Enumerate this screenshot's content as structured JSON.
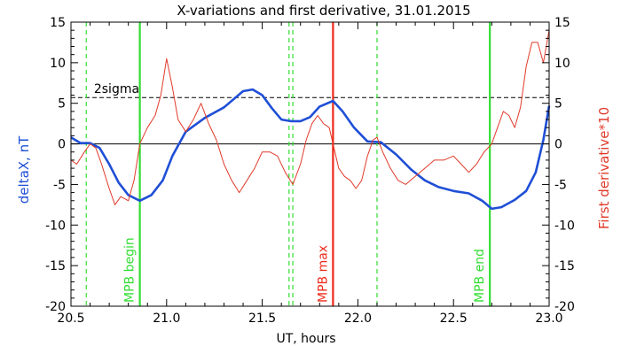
{
  "chart_data": {
    "type": "line",
    "title": "X-variations and first derivative, 31.01.2015",
    "xlabel": "UT, hours",
    "ylabel_left": "deltaX, nT",
    "ylabel_right": "First derivative*10",
    "xlim": [
      20.5,
      23.0
    ],
    "ylim": [
      -20,
      15
    ],
    "xticks": [
      "20.5",
      "21.0",
      "21.5",
      "22.0",
      "22.5",
      "23.0"
    ],
    "yticks": [
      "-20",
      "-15",
      "-10",
      "-5",
      "0",
      "5",
      "10",
      "15"
    ],
    "colors": {
      "deltaX": "#1f4fd6",
      "derivative": "#e03a2a",
      "mpb_edge": "#33dd33",
      "mpb_max": "#ee2a1a",
      "sigma": "#000000",
      "zero": "#000000"
    },
    "series": [
      {
        "name": "deltaX, nT",
        "axis": "left",
        "x": [
          20.5,
          20.55,
          20.6,
          20.65,
          20.7,
          20.75,
          20.8,
          20.86,
          20.92,
          20.98,
          21.03,
          21.1,
          21.2,
          21.3,
          21.4,
          21.45,
          21.5,
          21.55,
          21.6,
          21.65,
          21.7,
          21.75,
          21.8,
          21.87,
          21.92,
          21.98,
          22.05,
          22.12,
          22.2,
          22.28,
          22.35,
          22.42,
          22.5,
          22.58,
          22.65,
          22.7,
          22.75,
          22.82,
          22.88,
          22.93,
          22.97,
          23.0
        ],
        "y": [
          0.8,
          0.1,
          0.1,
          -0.5,
          -2.5,
          -4.8,
          -6.3,
          -7.0,
          -6.3,
          -4.5,
          -1.5,
          1.5,
          3.2,
          4.5,
          6.5,
          6.7,
          6.0,
          4.4,
          3.0,
          2.8,
          2.8,
          3.3,
          4.6,
          5.3,
          4.0,
          2.0,
          0.3,
          0.2,
          -1.3,
          -3.2,
          -4.5,
          -5.3,
          -5.8,
          -6.1,
          -7.0,
          -8.0,
          -7.8,
          -6.9,
          -5.8,
          -3.5,
          0.5,
          4.7
        ]
      },
      {
        "name": "First derivative*10",
        "axis": "right",
        "x": [
          20.5,
          20.53,
          20.57,
          20.6,
          20.63,
          20.66,
          20.7,
          20.73,
          20.76,
          20.8,
          20.83,
          20.86,
          20.9,
          20.94,
          20.97,
          21.0,
          21.03,
          21.06,
          21.1,
          21.14,
          21.18,
          21.22,
          21.26,
          21.3,
          21.34,
          21.38,
          21.42,
          21.46,
          21.5,
          21.54,
          21.58,
          21.62,
          21.66,
          21.7,
          21.73,
          21.76,
          21.79,
          21.82,
          21.85,
          21.87,
          21.9,
          21.93,
          21.96,
          21.99,
          22.02,
          22.05,
          22.08,
          22.1,
          22.13,
          22.17,
          22.21,
          22.25,
          22.3,
          22.35,
          22.4,
          22.45,
          22.5,
          22.54,
          22.58,
          22.62,
          22.66,
          22.7,
          22.73,
          22.76,
          22.79,
          22.82,
          22.85,
          22.88,
          22.91,
          22.94,
          22.97,
          23.0
        ],
        "y": [
          -2.0,
          -2.5,
          -1.0,
          0.0,
          -0.5,
          -2.5,
          -5.5,
          -7.5,
          -6.5,
          -7.0,
          -4.5,
          0.0,
          2.0,
          3.5,
          6.0,
          10.5,
          7.0,
          3.0,
          1.5,
          3.0,
          5.0,
          2.5,
          0.5,
          -2.5,
          -4.5,
          -6.0,
          -4.5,
          -3.0,
          -1.0,
          -1.0,
          -1.5,
          -3.5,
          -5.0,
          -2.5,
          0.5,
          2.5,
          3.5,
          2.5,
          2.0,
          0.0,
          -3.0,
          -4.0,
          -4.5,
          -5.5,
          -4.5,
          -1.5,
          0.5,
          0.8,
          -1.0,
          -3.0,
          -4.5,
          -5.0,
          -4.0,
          -3.0,
          -2.0,
          -2.0,
          -1.5,
          -2.5,
          -3.5,
          -2.5,
          -1.0,
          0.0,
          2.0,
          4.0,
          3.5,
          2.0,
          4.5,
          9.5,
          12.5,
          12.5,
          10.0,
          14.0
        ]
      }
    ],
    "hlines": [
      {
        "name": "2sigma",
        "y": 5.7,
        "style": "dashed"
      },
      {
        "name": "zero",
        "y": 0,
        "style": "solid"
      }
    ],
    "vlines": [
      {
        "x": 20.58,
        "style": "dashed",
        "color": "#33dd33"
      },
      {
        "x": 20.86,
        "style": "solid",
        "color": "#33dd33",
        "label": "MPB begin"
      },
      {
        "x": 21.64,
        "style": "dashed",
        "color": "#33dd33"
      },
      {
        "x": 21.66,
        "style": "dashed",
        "color": "#33dd33"
      },
      {
        "x": 21.87,
        "style": "solid",
        "color": "#ee2a1a",
        "label": "MPB max"
      },
      {
        "x": 22.1,
        "style": "dashed",
        "color": "#33dd33"
      },
      {
        "x": 22.69,
        "style": "solid",
        "color": "#33dd33",
        "label": "MPB end"
      }
    ],
    "annotations": [
      {
        "text": "2sigma",
        "x": 20.62,
        "y": 6.3
      }
    ]
  }
}
